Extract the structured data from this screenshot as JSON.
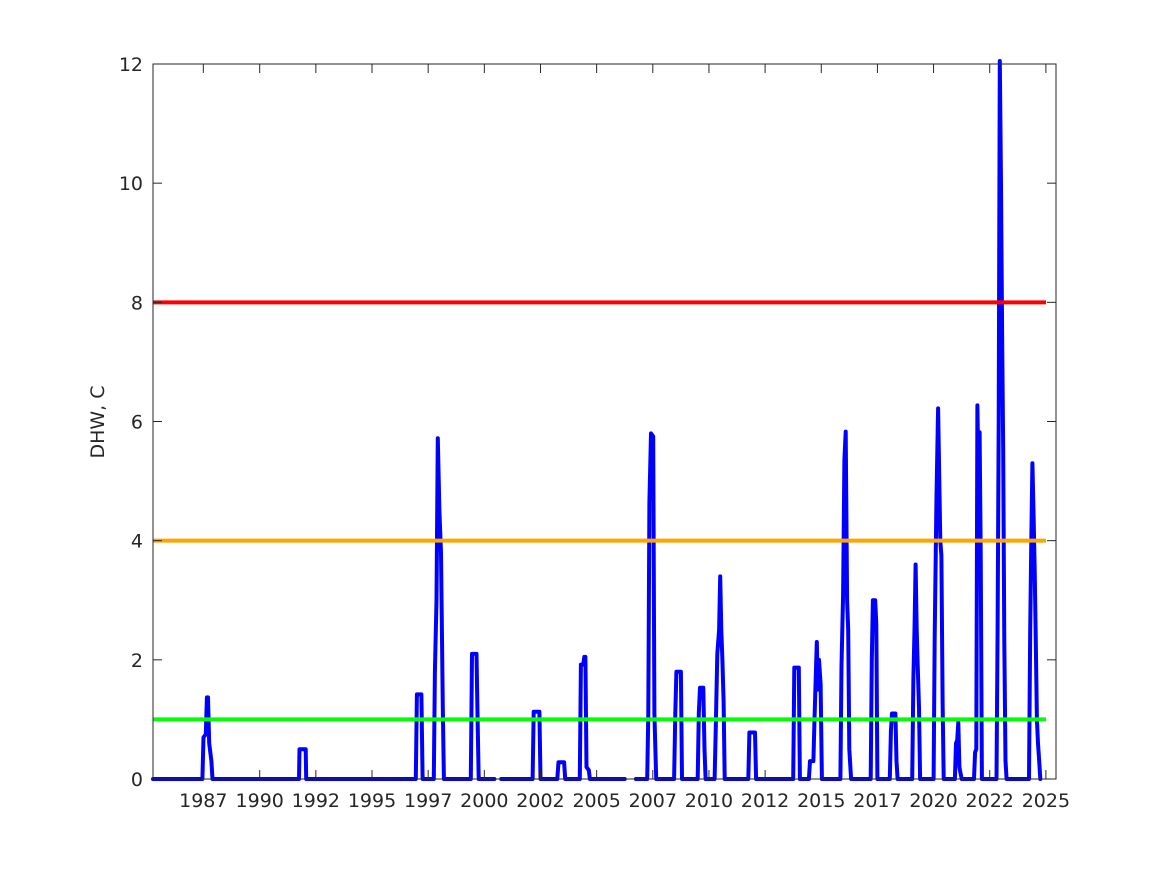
{
  "chart_data": {
    "type": "line",
    "title": "",
    "xlabel": "",
    "ylabel": "DHW, C",
    "xlim": [
      1985.0,
      2025.2
    ],
    "ylim": [
      0,
      12
    ],
    "yticks": [
      0,
      2,
      4,
      6,
      8,
      10,
      12
    ],
    "xticks": [
      {
        "label": "1987",
        "x": 1987.24
      },
      {
        "label": "1990",
        "x": 1989.75
      },
      {
        "label": "1992",
        "x": 1992.25
      },
      {
        "label": "1995",
        "x": 1994.75
      },
      {
        "label": "1997",
        "x": 1997.25
      },
      {
        "label": "2000",
        "x": 1999.75
      },
      {
        "label": "2002",
        "x": 2002.25
      },
      {
        "label": "2005",
        "x": 2004.75
      },
      {
        "label": "2007",
        "x": 2007.25
      },
      {
        "label": "2010",
        "x": 2009.75
      },
      {
        "label": "2012",
        "x": 2012.25
      },
      {
        "label": "2015",
        "x": 2014.75
      },
      {
        "label": "2017",
        "x": 2017.25
      },
      {
        "label": "2020",
        "x": 2019.75
      },
      {
        "label": "2022",
        "x": 2022.25
      },
      {
        "label": "2025",
        "x": 2024.75
      }
    ],
    "grid": false,
    "thresholds": [
      {
        "y": 1,
        "color": "#00ff00"
      },
      {
        "y": 4,
        "color": "#ffa500"
      },
      {
        "y": 8,
        "color": "#ff0000"
      }
    ],
    "series": [
      {
        "color": "#0000ff",
        "segments": [
          [
            [
              1985.0,
              0
            ],
            [
              1987.2,
              0
            ],
            [
              1987.25,
              0.7
            ],
            [
              1987.35,
              0.75
            ],
            [
              1987.4,
              1.37
            ],
            [
              1987.45,
              1.37
            ],
            [
              1987.5,
              0.6
            ],
            [
              1987.6,
              0.3
            ],
            [
              1987.65,
              0
            ],
            [
              1991.5,
              0
            ],
            [
              1991.52,
              0.5
            ],
            [
              1991.8,
              0.5
            ],
            [
              1991.82,
              0
            ],
            [
              1996.7,
              0
            ],
            [
              1996.75,
              1.42
            ],
            [
              1996.95,
              1.42
            ],
            [
              1997.0,
              0
            ],
            [
              1997.5,
              0
            ],
            [
              1997.55,
              1.8
            ],
            [
              1997.62,
              3.0
            ],
            [
              1997.68,
              5.72
            ],
            [
              1997.75,
              4.5
            ],
            [
              1997.82,
              3.8
            ],
            [
              1997.9,
              1.2
            ],
            [
              1997.95,
              0
            ],
            [
              1999.15,
              0
            ],
            [
              1999.2,
              2.1
            ],
            [
              1999.4,
              2.1
            ],
            [
              1999.45,
              1.0
            ],
            [
              1999.5,
              0
            ],
            [
              2000.2,
              0
            ]
          ],
          [
            [
              2000.5,
              0
            ],
            [
              2001.9,
              0
            ],
            [
              2001.95,
              1.13
            ],
            [
              2002.2,
              1.13
            ],
            [
              2002.25,
              0
            ],
            [
              2003.0,
              0
            ],
            [
              2003.05,
              0.28
            ],
            [
              2003.3,
              0.28
            ],
            [
              2003.35,
              0
            ],
            [
              2004.0,
              0
            ],
            [
              2004.05,
              1.92
            ],
            [
              2004.15,
              1.92
            ],
            [
              2004.2,
              2.05
            ],
            [
              2004.25,
              2.05
            ],
            [
              2004.3,
              0.2
            ],
            [
              2004.4,
              0.15
            ],
            [
              2004.45,
              0
            ],
            [
              2006.0,
              0
            ]
          ],
          [
            [
              2006.5,
              0
            ],
            [
              2007.0,
              0
            ],
            [
              2007.05,
              1.1
            ],
            [
              2007.1,
              4.65
            ],
            [
              2007.17,
              5.8
            ],
            [
              2007.27,
              5.75
            ],
            [
              2007.32,
              1.1
            ],
            [
              2007.4,
              0
            ],
            [
              2008.2,
              0
            ],
            [
              2008.25,
              1.1
            ],
            [
              2008.3,
              1.8
            ],
            [
              2008.5,
              1.8
            ],
            [
              2008.55,
              0
            ],
            [
              2009.25,
              0
            ],
            [
              2009.3,
              1.1
            ],
            [
              2009.35,
              1.53
            ],
            [
              2009.5,
              1.53
            ],
            [
              2009.55,
              0.5
            ],
            [
              2009.6,
              0
            ],
            [
              2010.0,
              0
            ],
            [
              2010.05,
              0.8
            ],
            [
              2010.12,
              2.1
            ],
            [
              2010.2,
              2.5
            ],
            [
              2010.25,
              3.4
            ],
            [
              2010.3,
              2.5
            ],
            [
              2010.35,
              2.0
            ],
            [
              2010.4,
              1.3
            ],
            [
              2010.45,
              0
            ],
            [
              2011.5,
              0
            ],
            [
              2011.55,
              0.78
            ],
            [
              2011.8,
              0.78
            ],
            [
              2011.85,
              0
            ],
            [
              2013.5,
              0
            ],
            [
              2013.55,
              1.87
            ],
            [
              2013.75,
              1.87
            ],
            [
              2013.8,
              0
            ],
            [
              2014.2,
              0
            ],
            [
              2014.25,
              0.3
            ],
            [
              2014.4,
              0.3
            ],
            [
              2014.45,
              1.0
            ],
            [
              2014.55,
              2.3
            ],
            [
              2014.6,
              1.5
            ],
            [
              2014.65,
              2.0
            ],
            [
              2014.72,
              1.6
            ],
            [
              2014.78,
              0
            ],
            [
              2015.6,
              0
            ],
            [
              2015.65,
              1.9
            ],
            [
              2015.72,
              3.1
            ],
            [
              2015.78,
              5.35
            ],
            [
              2015.84,
              5.83
            ],
            [
              2015.9,
              3.0
            ],
            [
              2015.95,
              2.5
            ],
            [
              2016.0,
              0.5
            ],
            [
              2016.08,
              0
            ],
            [
              2016.95,
              0
            ],
            [
              2017.0,
              2.0
            ],
            [
              2017.05,
              3.0
            ],
            [
              2017.15,
              3.0
            ],
            [
              2017.2,
              2.6
            ],
            [
              2017.25,
              0
            ],
            [
              2017.8,
              0
            ],
            [
              2017.85,
              0.8
            ],
            [
              2017.9,
              1.1
            ],
            [
              2018.05,
              1.1
            ],
            [
              2018.1,
              0.3
            ],
            [
              2018.15,
              0
            ],
            [
              2018.8,
              0
            ],
            [
              2018.85,
              1.7
            ],
            [
              2018.9,
              2.5
            ],
            [
              2018.95,
              3.6
            ],
            [
              2019.0,
              2.5
            ],
            [
              2019.05,
              1.8
            ],
            [
              2019.1,
              1.2
            ],
            [
              2019.15,
              0
            ],
            [
              2019.75,
              0
            ],
            [
              2019.8,
              2.4
            ],
            [
              2019.88,
              4.75
            ],
            [
              2019.95,
              6.22
            ],
            [
              2020.05,
              4.0
            ],
            [
              2020.1,
              3.75
            ],
            [
              2020.15,
              1.3
            ],
            [
              2020.2,
              0
            ],
            [
              2020.7,
              0
            ],
            [
              2020.75,
              0.6
            ],
            [
              2020.8,
              0.65
            ],
            [
              2020.85,
              0.95
            ],
            [
              2020.9,
              0.2
            ],
            [
              2020.95,
              0.1
            ],
            [
              2021.0,
              0
            ],
            [
              2021.55,
              0
            ],
            [
              2021.6,
              0.45
            ],
            [
              2021.65,
              0.5
            ],
            [
              2021.7,
              6.27
            ],
            [
              2021.75,
              5.0
            ],
            [
              2021.8,
              5.82
            ],
            [
              2021.85,
              3.8
            ],
            [
              2021.9,
              0
            ],
            [
              2022.55,
              0
            ],
            [
              2022.6,
              2.5
            ],
            [
              2022.65,
              6.0
            ],
            [
              2022.7,
              12.05
            ],
            [
              2022.75,
              10.0
            ],
            [
              2022.8,
              7.5
            ],
            [
              2022.85,
              5.5
            ],
            [
              2022.9,
              2.3
            ],
            [
              2022.95,
              0.3
            ],
            [
              2023.0,
              0
            ],
            [
              2024.0,
              0
            ],
            [
              2024.05,
              2.5
            ],
            [
              2024.1,
              4.0
            ],
            [
              2024.15,
              5.3
            ],
            [
              2024.2,
              4.5
            ],
            [
              2024.25,
              3.5
            ],
            [
              2024.3,
              2.3
            ],
            [
              2024.35,
              1.0
            ],
            [
              2024.4,
              0.6
            ],
            [
              2024.45,
              0.3
            ],
            [
              2024.5,
              0
            ]
          ]
        ]
      }
    ]
  }
}
